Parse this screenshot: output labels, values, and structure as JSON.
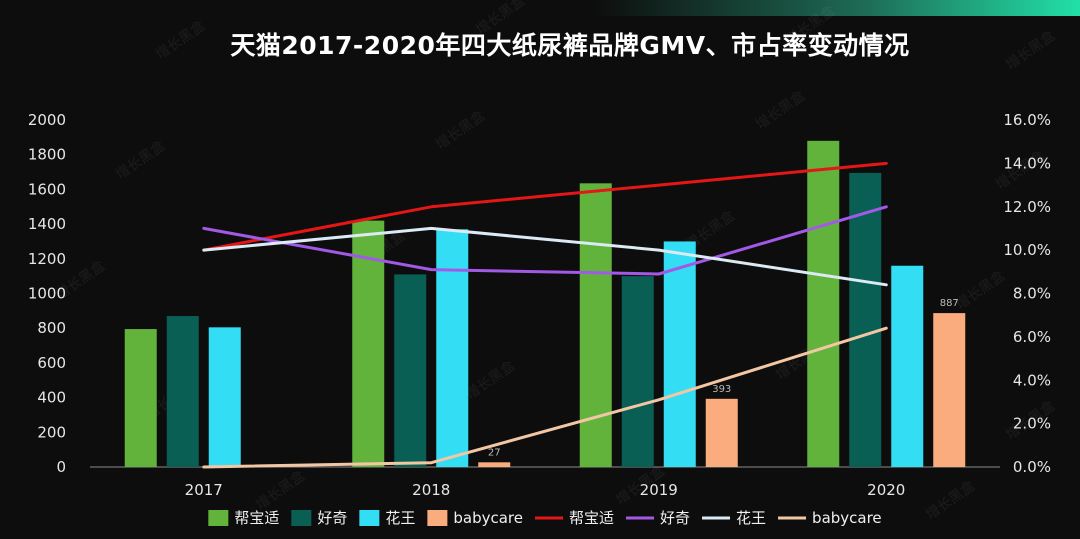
{
  "title": "天猫2017-2020年四大纸尿裤品牌GMV、市占率变动情况",
  "watermark": "增长黑盒",
  "chart_data": {
    "type": "bar",
    "categories": [
      "2017",
      "2018",
      "2019",
      "2020"
    ],
    "ylim": [
      0,
      2000
    ],
    "y_ticks": [
      "0",
      "200",
      "400",
      "600",
      "800",
      "1000",
      "1200",
      "1400",
      "1600",
      "1800",
      "2000"
    ],
    "y2lim": [
      0,
      16
    ],
    "y2_ticks": [
      "0.0%",
      "2.0%",
      "4.0%",
      "6.0%",
      "8.0%",
      "10.0%",
      "12.0%",
      "14.0%",
      "16.0%"
    ],
    "bar_series": [
      {
        "name": "帮宝适",
        "color": "#62b33c",
        "values": [
          795,
          1420,
          1635,
          1880
        ]
      },
      {
        "name": "好奇",
        "color": "#0a5f55",
        "values": [
          870,
          1110,
          1100,
          1695
        ]
      },
      {
        "name": "花王",
        "color": "#33def5",
        "values": [
          805,
          1370,
          1300,
          1160
        ]
      },
      {
        "name": "babycare",
        "color": "#fbac7e",
        "values": [
          0,
          27,
          393,
          887
        ]
      }
    ],
    "bar_labels": {
      "series": "babycare",
      "values": [
        "",
        "27",
        "393",
        "887"
      ]
    },
    "line_series": [
      {
        "name": "帮宝适",
        "color": "#e51616",
        "values": [
          10.0,
          12.0,
          13.0,
          14.0
        ]
      },
      {
        "name": "好奇",
        "color": "#a259e6",
        "values": [
          11.0,
          9.1,
          8.9,
          12.0
        ]
      },
      {
        "name": "花王",
        "color": "#dbeaf4",
        "values": [
          10.0,
          11.0,
          10.0,
          8.4
        ]
      },
      {
        "name": "babycare",
        "color": "#f3c7a4",
        "values": [
          0.0,
          0.2,
          3.1,
          6.4
        ]
      }
    ],
    "legend_position": "bottom",
    "grid": false
  }
}
